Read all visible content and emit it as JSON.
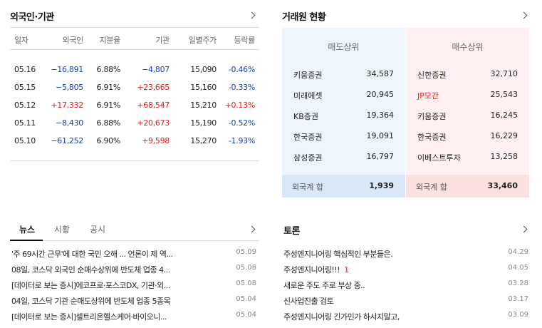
{
  "investor": {
    "title": "외국인·기관",
    "headers": [
      "일자",
      "외국인",
      "지분율",
      "기관",
      "일별주가",
      "등락률"
    ],
    "rows": [
      {
        "date": "05.16",
        "foreign": "−16,891",
        "foreign_dir": "down",
        "ratio": "6.88%",
        "inst": "−4,807",
        "inst_dir": "down",
        "price": "15,090",
        "change": "-0.46%",
        "change_dir": "down"
      },
      {
        "date": "05.15",
        "foreign": "−5,805",
        "foreign_dir": "down",
        "ratio": "6.91%",
        "inst": "+23,665",
        "inst_dir": "up",
        "price": "15,160",
        "change": "-0.33%",
        "change_dir": "down"
      },
      {
        "date": "05.12",
        "foreign": "+17,332",
        "foreign_dir": "up",
        "ratio": "6.91%",
        "inst": "+68,547",
        "inst_dir": "up",
        "price": "15,210",
        "change": "+0.13%",
        "change_dir": "up"
      },
      {
        "date": "05.11",
        "foreign": "−8,430",
        "foreign_dir": "down",
        "ratio": "6.88%",
        "inst": "+20,673",
        "inst_dir": "up",
        "price": "15,190",
        "change": "-0.52%",
        "change_dir": "down"
      },
      {
        "date": "05.10",
        "foreign": "−61,252",
        "foreign_dir": "down",
        "ratio": "6.90%",
        "inst": "+9,598",
        "inst_dir": "up",
        "price": "15,270",
        "change": "-1.93%",
        "change_dir": "down"
      }
    ]
  },
  "broker": {
    "title": "거래원 현황",
    "sell_header": "매도상위",
    "buy_header": "매수상위",
    "sell": [
      {
        "name": "키움증권",
        "value": "34,587"
      },
      {
        "name": "미래에셋",
        "value": "20,945"
      },
      {
        "name": "KB증권",
        "value": "19,364"
      },
      {
        "name": "한국증권",
        "value": "19,091"
      },
      {
        "name": "삼성증권",
        "value": "16,797"
      }
    ],
    "buy": [
      {
        "name": "신한증권",
        "value": "32,710",
        "highlight": false
      },
      {
        "name": "JP모간",
        "value": "25,543",
        "highlight": true
      },
      {
        "name": "키움증권",
        "value": "16,245",
        "highlight": false
      },
      {
        "name": "한국증권",
        "value": "16,229",
        "highlight": false
      },
      {
        "name": "이베스트투자",
        "value": "13,258",
        "highlight": false
      }
    ],
    "sell_total_label": "외국계 합",
    "sell_total": "1,939",
    "buy_total_label": "외국계 합",
    "buy_total": "33,460"
  },
  "news": {
    "tabs": [
      "뉴스",
      "시황",
      "공시"
    ],
    "items": [
      {
        "title": "'주 69시간 근무'에 대한 국민 오해 ... 언론이 제 역...",
        "date": "05.09"
      },
      {
        "title": "08일, 코스닥 외국인 순매수상위에 반도체 업종 4...",
        "date": "05.08"
      },
      {
        "title": "[데이터로 보는 증시]에코프로·포스코DX, 기관·외...",
        "date": "05.08"
      },
      {
        "title": "04일, 코스닥 기관 순매도상위에 반도체 업종 5종목",
        "date": "05.04"
      },
      {
        "title": "[데이터로 보는 증시]셀트리온헬스케어·바이오니...",
        "date": "05.04"
      }
    ]
  },
  "discussion": {
    "title": "토론",
    "items": [
      {
        "title": "주성엔지니어링 핵심적인 부분들은.",
        "count": "",
        "date": "04.29"
      },
      {
        "title": "주성엔지니어링!!!",
        "count": "1",
        "date": "04.05"
      },
      {
        "title": "새로운 주도 주로 부상 중..",
        "count": "",
        "date": "03.28"
      },
      {
        "title": "신사업진출 검토",
        "count": "",
        "date": "03.17"
      },
      {
        "title": "주성엔지니어링 긴가민가 하시지말고,",
        "count": "",
        "date": "03.09"
      }
    ]
  },
  "colors": {
    "up": "#e8201a",
    "down": "#1a3fb3",
    "sell_bg": "#eef5fd",
    "buy_bg": "#fff1f1"
  }
}
